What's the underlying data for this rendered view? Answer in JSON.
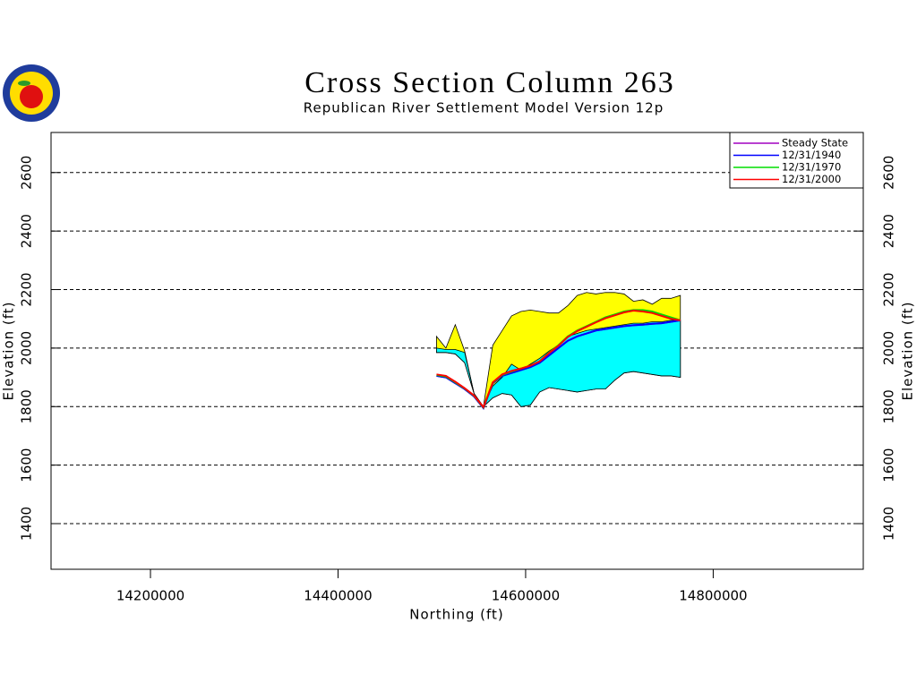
{
  "chart_data": {
    "type": "line",
    "title": "Cross Section Column 263",
    "subtitle": "Republican River Settlement Model Version 12p",
    "x_label": "Northing (ft)",
    "y_label": "Elevation (ft)",
    "xlim": [
      14094000,
      14960000
    ],
    "ylim": [
      1244,
      2737
    ],
    "xticks": [
      14200000,
      14400000,
      14600000,
      14800000
    ],
    "yticks": [
      1400,
      1600,
      1800,
      2000,
      2200,
      2400,
      2600
    ],
    "grid": true,
    "legend": "upper right",
    "x": [
      14505000,
      14515000,
      14525000,
      14535000,
      14545000,
      14555000,
      14565000,
      14575000,
      14585000,
      14595000,
      14605000,
      14615000,
      14625000,
      14635000,
      14645000,
      14655000,
      14665000,
      14675000,
      14685000,
      14695000,
      14705000,
      14715000,
      14725000,
      14735000,
      14745000,
      14755000,
      14765000
    ],
    "areas": [
      {
        "color": "#ffff00",
        "top": [
          2040,
          2000,
          2080,
          1990,
          1845,
          1800,
          2010,
          2060,
          2110,
          2125,
          2130,
          2125,
          2120,
          2120,
          2145,
          2180,
          2190,
          2185,
          2190,
          2190,
          2185,
          2160,
          2165,
          2150,
          2170,
          2170,
          2180
        ],
        "bottom": [
          1985,
          1985,
          1980,
          1950,
          1845,
          1800,
          1830,
          1845,
          1840,
          1800,
          1805,
          1850,
          1865,
          1860,
          1855,
          1850,
          1855,
          1860,
          1860,
          1890,
          1915,
          1920,
          1915,
          1910,
          1905,
          1905,
          1900
        ]
      },
      {
        "color": "#00ffff",
        "top": [
          2000,
          1995,
          1995,
          1985,
          1845,
          1800,
          1870,
          1900,
          1945,
          1925,
          1945,
          1965,
          1990,
          2010,
          2040,
          2050,
          2060,
          2065,
          2070,
          2075,
          2080,
          2085,
          2085,
          2090,
          2090,
          2095,
          2095
        ],
        "bottom": [
          1985,
          1985,
          1980,
          1950,
          1845,
          1800,
          1830,
          1845,
          1840,
          1800,
          1805,
          1850,
          1865,
          1860,
          1855,
          1850,
          1855,
          1860,
          1860,
          1890,
          1915,
          1920,
          1915,
          1910,
          1905,
          1905,
          1900
        ]
      }
    ],
    "series": [
      {
        "name": "Steady State",
        "color": "#a000c0",
        "values": [
          1905,
          1900,
          1880,
          1860,
          1835,
          1795,
          1880,
          1905,
          1915,
          1925,
          1935,
          1950,
          1975,
          2000,
          2025,
          2040,
          2050,
          2060,
          2065,
          2070,
          2075,
          2078,
          2080,
          2083,
          2085,
          2090,
          2095
        ]
      },
      {
        "name": "12/31/1940",
        "color": "#0000ff",
        "values": [
          1905,
          1900,
          1880,
          1860,
          1835,
          1795,
          1880,
          1905,
          1915,
          1925,
          1935,
          1950,
          1975,
          2000,
          2025,
          2040,
          2050,
          2060,
          2065,
          2070,
          2075,
          2078,
          2080,
          2083,
          2085,
          2090,
          2095
        ]
      },
      {
        "name": "12/31/1970",
        "color": "#00dd00",
        "values": [
          1908,
          1903,
          1883,
          1862,
          1837,
          1797,
          1882,
          1908,
          1920,
          1930,
          1940,
          1955,
          1985,
          2010,
          2040,
          2060,
          2075,
          2090,
          2105,
          2115,
          2125,
          2130,
          2130,
          2125,
          2115,
          2105,
          2095
        ]
      },
      {
        "name": "12/31/2000",
        "color": "#ff0000",
        "values": [
          1910,
          1905,
          1885,
          1863,
          1838,
          1798,
          1883,
          1910,
          1922,
          1930,
          1940,
          1955,
          1983,
          2008,
          2038,
          2058,
          2073,
          2088,
          2102,
          2112,
          2122,
          2128,
          2125,
          2120,
          2110,
          2100,
          2095
        ]
      }
    ]
  }
}
